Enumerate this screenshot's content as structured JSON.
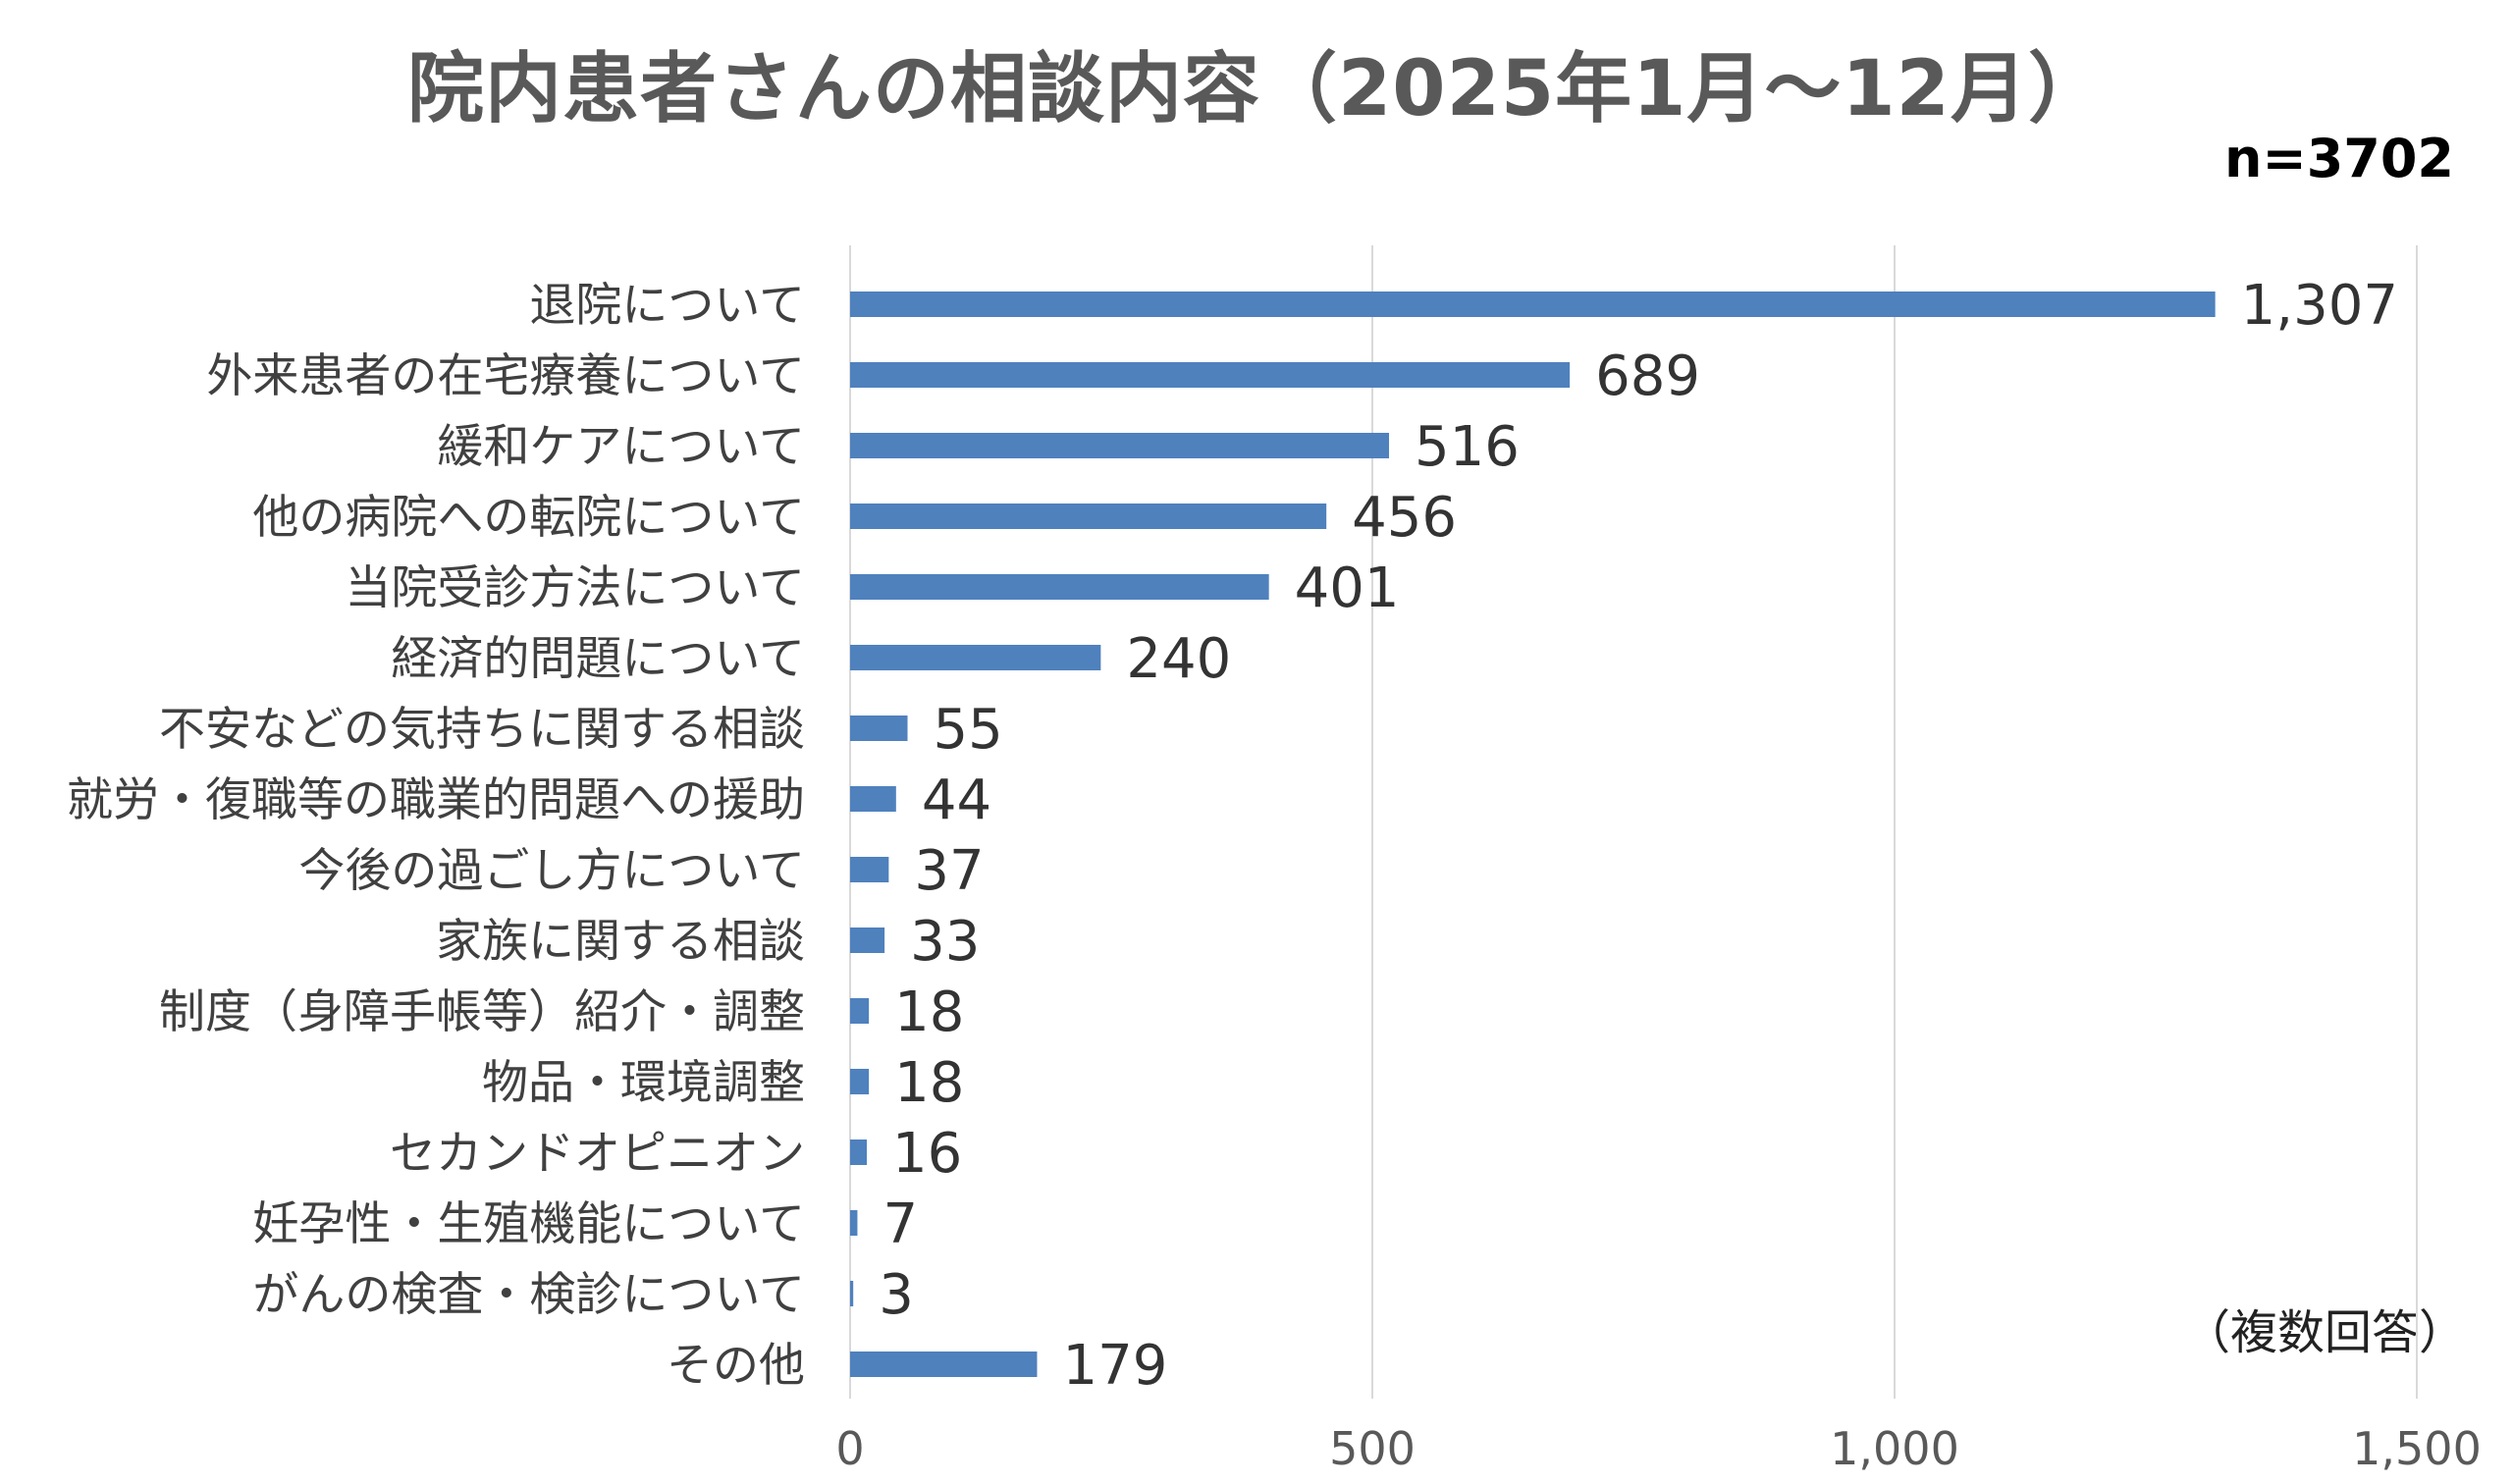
{
  "chart_data": {
    "type": "bar",
    "orientation": "horizontal",
    "title": "院内患者さんの相談内容（2025年1月～12月）",
    "sample_size_label": "n=3702",
    "note": "（複数回答）",
    "categories": [
      "退院について",
      "外来患者の在宅療養について",
      "緩和ケアについて",
      "他の病院への転院について",
      "当院受診方法について",
      "経済的問題について",
      "不安などの気持ちに関する相談",
      "就労・復職等の職業的問題への援助",
      "今後の過ごし方について",
      "家族に関する相談",
      "制度（身障手帳等）紹介・調整",
      "物品・環境調整",
      "セカンドオピニオン",
      "妊孕性・生殖機能について",
      "がんの検査・検診について",
      "その他"
    ],
    "values": [
      1307,
      689,
      516,
      456,
      401,
      240,
      55,
      44,
      37,
      33,
      18,
      18,
      16,
      7,
      3,
      179
    ],
    "value_labels": [
      "1,307",
      "689",
      "516",
      "456",
      "401",
      "240",
      "55",
      "44",
      "37",
      "33",
      "18",
      "18",
      "16",
      "7",
      "3",
      "179"
    ],
    "xlim": [
      0,
      1500
    ],
    "x_ticks": [
      0,
      500,
      1000,
      1500
    ],
    "x_tick_labels": [
      "0",
      "500",
      "1,000",
      "1,500"
    ],
    "grid": "vertical",
    "bar_color": "#4f81bd",
    "grid_color": "#d9d9d9"
  }
}
